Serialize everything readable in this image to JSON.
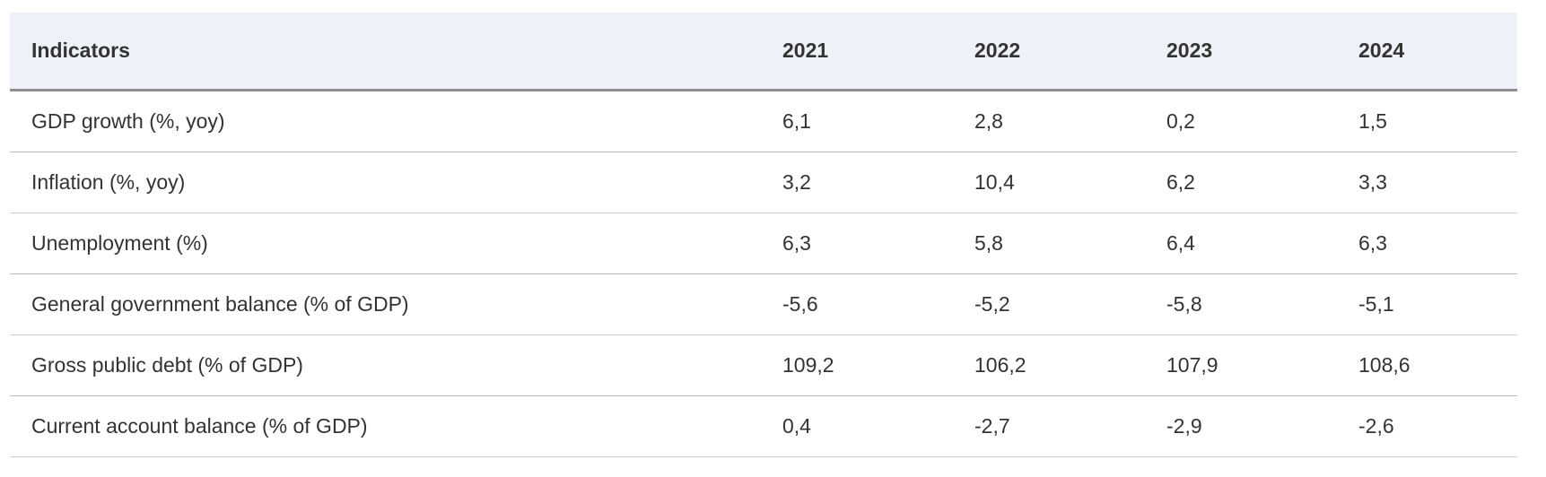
{
  "table": {
    "headers": [
      "Indicators",
      "2021",
      "2022",
      "2023",
      "2024"
    ],
    "rows": [
      {
        "indicator": "GDP growth (%, yoy)",
        "values": [
          "6,1",
          "2,8",
          "0,2",
          "1,5"
        ]
      },
      {
        "indicator": "Inflation (%, yoy)",
        "values": [
          "3,2",
          "10,4",
          "6,2",
          "3,3"
        ]
      },
      {
        "indicator": "Unemployment (%)",
        "values": [
          "6,3",
          "5,8",
          "6,4",
          "6,3"
        ]
      },
      {
        "indicator": "General government balance (% of GDP)",
        "values": [
          "-5,6",
          "-5,2",
          "-5,8",
          "-5,1"
        ]
      },
      {
        "indicator": "Gross public debt (% of GDP)",
        "values": [
          "109,2",
          "106,2",
          "107,9",
          "108,6"
        ]
      },
      {
        "indicator": "Current account balance (% of GDP)",
        "values": [
          "0,4",
          "-2,7",
          "-2,9",
          "-2,6"
        ]
      }
    ]
  }
}
